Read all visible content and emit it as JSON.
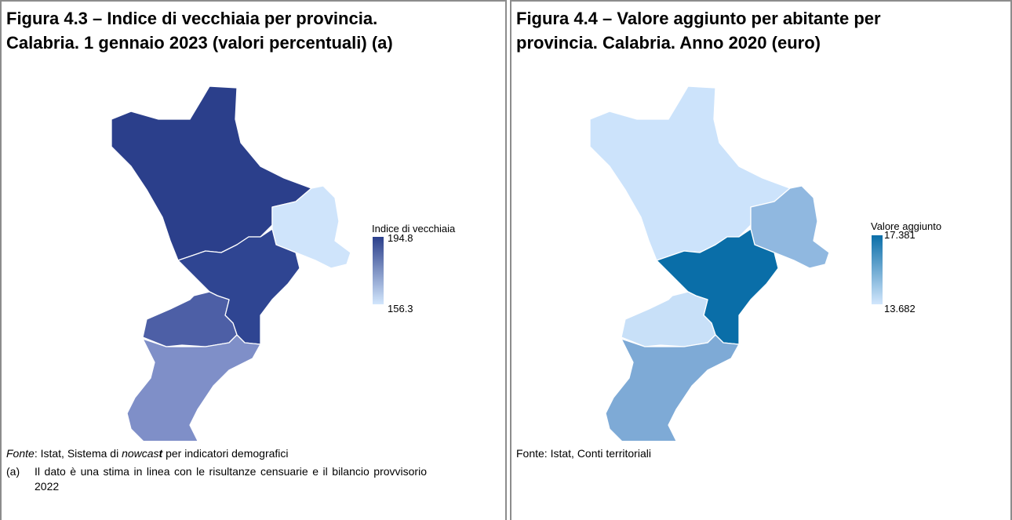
{
  "panels": [
    {
      "title": [
        "Figura 4.3 – Indice di vecchiaia per provincia.",
        "Calabria. 1 gennaio 2023 (valori percentuali) (a)"
      ],
      "legend": {
        "title": "Indice di vecchiaia",
        "max": "194.8",
        "min": "156.3"
      },
      "source": [
        "Fonte",
        ": Istat, Sistema di ",
        "nowcas",
        "t",
        " per indicatori demografici"
      ],
      "note": {
        "marker": "(a)",
        "text": "Il dato è una stima in linea con le risultanze censuarie e il bilancio provvisorio 2022"
      }
    },
    {
      "title": [
        "Figura 4.4 – Valore aggiunto per abitante per",
        "provincia. Calabria. Anno 2020 (euro)"
      ],
      "legend": {
        "title": "Valore aggiunto",
        "max": "17.381",
        "min": "13.682"
      },
      "source": [
        "Fonte: Istat, Conti territoriali"
      ]
    }
  ]
}
